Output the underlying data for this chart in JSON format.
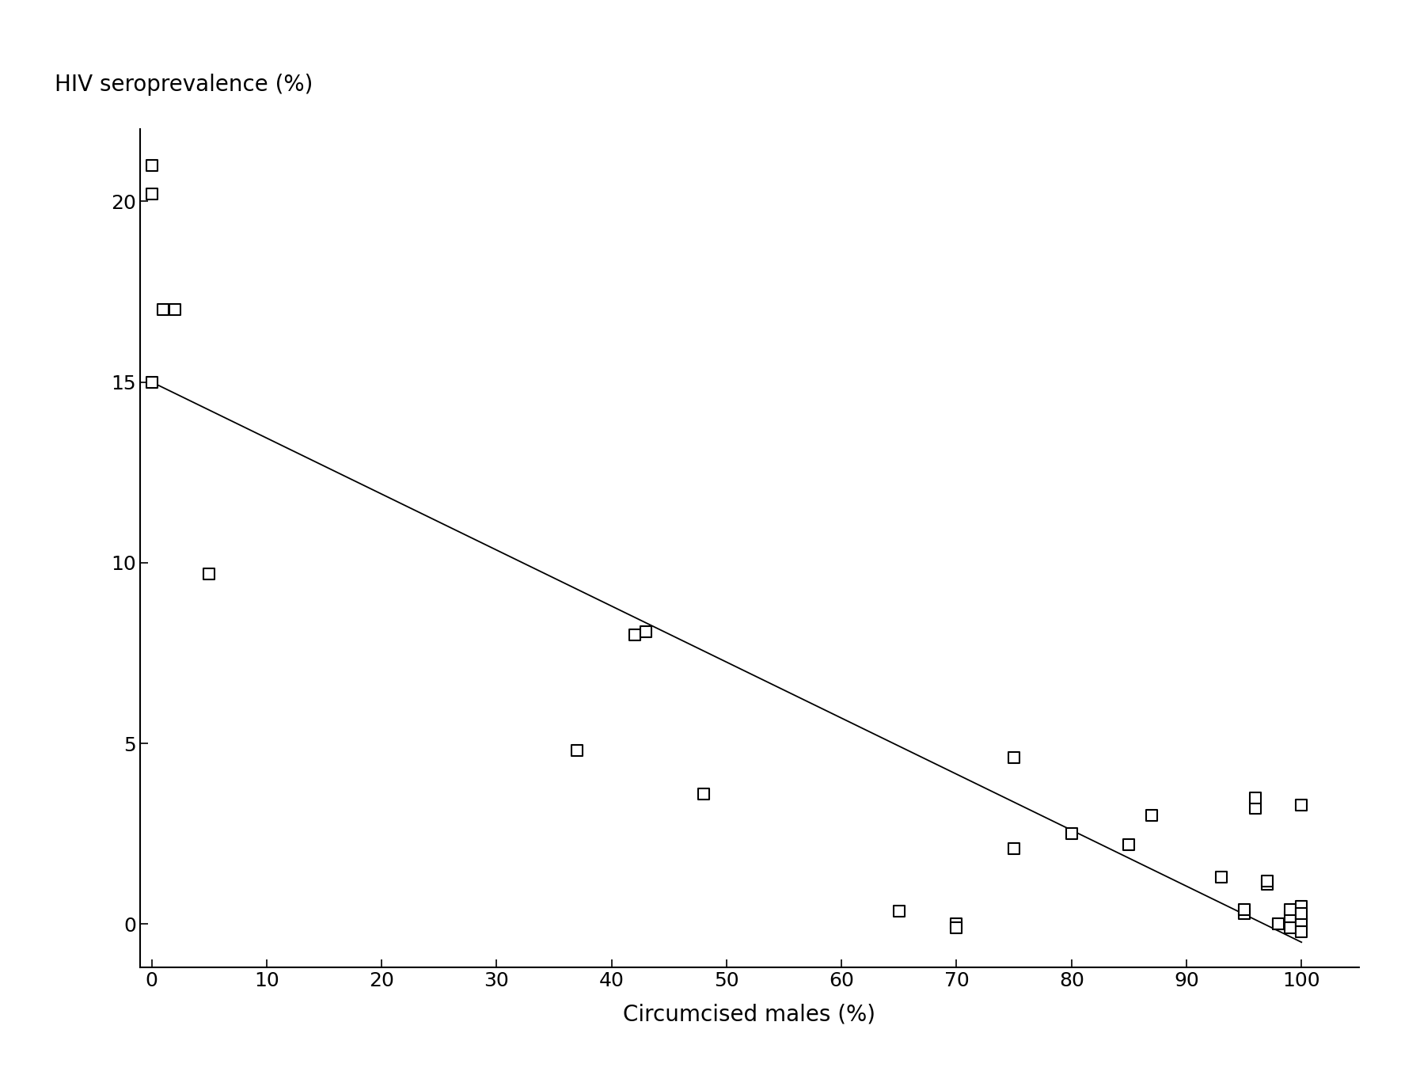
{
  "x_data": [
    0,
    0,
    0,
    5,
    1,
    2,
    37,
    42,
    43,
    48,
    65,
    70,
    70,
    75,
    75,
    80,
    85,
    87,
    93,
    95,
    95,
    96,
    96,
    97,
    97,
    98,
    98,
    99,
    99,
    99,
    100,
    100,
    100,
    100,
    100,
    100,
    100
  ],
  "y_data": [
    21,
    20.2,
    15,
    9.7,
    17,
    17,
    4.8,
    8.0,
    8.1,
    3.6,
    0.35,
    0,
    -0.1,
    4.6,
    2.1,
    2.5,
    2.2,
    3.0,
    1.3,
    0.3,
    0.4,
    3.2,
    3.5,
    1.1,
    1.2,
    0,
    0,
    -0.1,
    0.2,
    0.4,
    3.3,
    0.2,
    0,
    -0.2,
    0.1,
    0.5,
    0.3
  ],
  "line_x": [
    0,
    100
  ],
  "line_y": [
    15.0,
    -0.5
  ],
  "xlabel": "Circumcised males (%)",
  "ylabel": "HIV seroprevalence (%)",
  "xlim": [
    -1,
    105
  ],
  "ylim": [
    -1.2,
    22
  ],
  "xticks": [
    0,
    10,
    20,
    30,
    40,
    50,
    60,
    70,
    80,
    90,
    100
  ],
  "yticks": [
    0,
    5,
    10,
    15,
    20
  ],
  "marker_size": 90,
  "marker_color": "white",
  "marker_edgecolor": "black",
  "marker_linewidth": 1.5,
  "line_color": "black",
  "line_linewidth": 1.3,
  "background_color": "white",
  "label_fontsize": 20,
  "tick_fontsize": 18
}
